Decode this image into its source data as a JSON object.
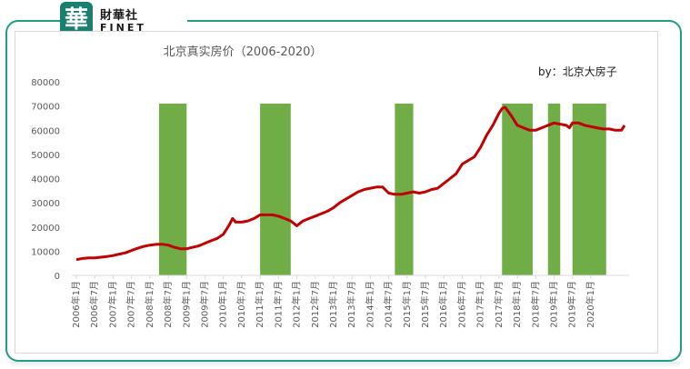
{
  "logo": {
    "mark": "華",
    "cn": "財華社",
    "en": "FINET"
  },
  "chart_data": {
    "type": "line",
    "title": "北京真实房价（2006-2020）",
    "annotation": "by：北京大房子",
    "xlabel": "",
    "ylabel": "",
    "ylim": [
      0,
      80000
    ],
    "yticks": [
      "0",
      "10000",
      "20000",
      "30000",
      "40000",
      "50000",
      "60000",
      "70000",
      "80000"
    ],
    "grid": false,
    "legend": "none",
    "colors": {
      "line": "#c00000",
      "band": "#70ad47"
    },
    "x_ticks": [
      "2006年1月",
      "2006年7月",
      "2007年1月",
      "2007年7月",
      "2008年1月",
      "2008年7月",
      "2009年1月",
      "2009年7月",
      "2010年1月",
      "2010年7月",
      "2011年1月",
      "2011年7月",
      "2012年1月",
      "2012年7月",
      "2013年1月",
      "2013年7月",
      "2014年1月",
      "2014年7月",
      "2015年1月",
      "2015年7月",
      "2016年1月",
      "2016年7月",
      "2017年1月",
      "2017年7月",
      "2018年1月",
      "2018年7月",
      "2019年1月",
      "2019年7月",
      "2020年1月"
    ],
    "series": [
      {
        "values": [
          [
            0,
            6500
          ],
          [
            2,
            7000
          ],
          [
            4,
            7200
          ],
          [
            6,
            7200
          ],
          [
            8,
            7500
          ],
          [
            10,
            7800
          ],
          [
            12,
            8200
          ],
          [
            14,
            8800
          ],
          [
            16,
            9300
          ],
          [
            18,
            10300
          ],
          [
            20,
            11200
          ],
          [
            22,
            12000
          ],
          [
            24,
            12500
          ],
          [
            26,
            12800
          ],
          [
            28,
            12900
          ],
          [
            30,
            12500
          ],
          [
            32,
            11600
          ],
          [
            34,
            11000
          ],
          [
            36,
            11000
          ],
          [
            38,
            11600
          ],
          [
            40,
            12200
          ],
          [
            42,
            13300
          ],
          [
            44,
            14300
          ],
          [
            46,
            15300
          ],
          [
            48,
            17000
          ],
          [
            49,
            19000
          ],
          [
            50,
            21000
          ],
          [
            51,
            23500
          ],
          [
            52,
            22000
          ],
          [
            54,
            22000
          ],
          [
            56,
            22500
          ],
          [
            58,
            23500
          ],
          [
            60,
            25000
          ],
          [
            62,
            25000
          ],
          [
            64,
            25000
          ],
          [
            66,
            24500
          ],
          [
            68,
            23500
          ],
          [
            70,
            22500
          ],
          [
            72,
            20500
          ],
          [
            74,
            22500
          ],
          [
            76,
            23500
          ],
          [
            78,
            24500
          ],
          [
            80,
            25500
          ],
          [
            82,
            26500
          ],
          [
            84,
            28000
          ],
          [
            86,
            30000
          ],
          [
            88,
            31500
          ],
          [
            90,
            33000
          ],
          [
            92,
            34500
          ],
          [
            94,
            35500
          ],
          [
            96,
            36000
          ],
          [
            98,
            36500
          ],
          [
            100,
            36500
          ],
          [
            102,
            34000
          ],
          [
            104,
            33500
          ],
          [
            106,
            33500
          ],
          [
            108,
            34000
          ],
          [
            110,
            34500
          ],
          [
            112,
            34000
          ],
          [
            114,
            34500
          ],
          [
            116,
            35500
          ],
          [
            118,
            36000
          ],
          [
            120,
            38000
          ],
          [
            122,
            40000
          ],
          [
            124,
            42000
          ],
          [
            126,
            46000
          ],
          [
            128,
            47500
          ],
          [
            130,
            49000
          ],
          [
            132,
            53000
          ],
          [
            134,
            58000
          ],
          [
            136,
            62000
          ],
          [
            138,
            67000
          ],
          [
            139,
            69000
          ],
          [
            140,
            69500
          ],
          [
            142,
            66000
          ],
          [
            144,
            62000
          ],
          [
            146,
            61000
          ],
          [
            148,
            60000
          ],
          [
            150,
            60000
          ],
          [
            152,
            61000
          ],
          [
            154,
            62000
          ],
          [
            156,
            63000
          ],
          [
            158,
            62500
          ],
          [
            160,
            62000
          ],
          [
            161,
            61000
          ],
          [
            162,
            63000
          ],
          [
            164,
            63000
          ],
          [
            166,
            62000
          ],
          [
            168,
            61500
          ],
          [
            170,
            61000
          ],
          [
            172,
            60500
          ],
          [
            174,
            60500
          ],
          [
            176,
            60000
          ],
          [
            178,
            60000
          ],
          [
            179,
            62000
          ]
        ]
      }
    ],
    "bands": [
      [
        27,
        36
      ],
      [
        60,
        70
      ],
      [
        104,
        110
      ],
      [
        139,
        149
      ],
      [
        154,
        158
      ],
      [
        162,
        173
      ]
    ]
  }
}
